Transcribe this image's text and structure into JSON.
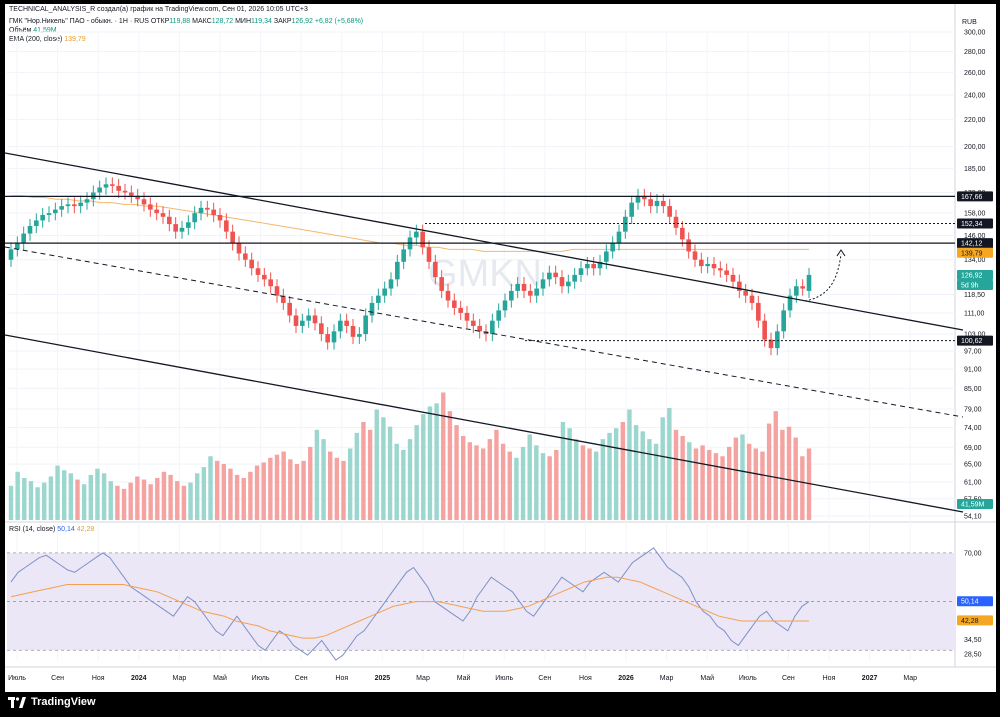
{
  "header": {
    "title": "TECHNICAL_ANALYSIS_R создал(а) график на TradingView.com, Сен 01, 2026 10:05 UTC+3"
  },
  "legend": {
    "symbol": "ГМК \"Нор.Никель\" ПАО - обыкн. · 1H · RUS",
    "open_label": "ОТКР",
    "open": "119,88",
    "high_label": "МАКС",
    "high": "128,72",
    "low_label": "МИН",
    "low": "119,34",
    "close_label": "ЗАКР",
    "close": "126,92",
    "change": "+6,82 (+5,68%)",
    "volume_label": "Объём",
    "volume": "41,59M",
    "ema_label": "EMA (200, close)",
    "ema": "139,79",
    "rsi_label": "RSI (14, close)",
    "rsi": "50,14",
    "rsi_ma": "42,28"
  },
  "watermark": "GMKN",
  "currency": "RUB",
  "colors": {
    "up": "#26a69a",
    "down": "#ef5350",
    "ema": "#f5b86b",
    "rsi": "#7e90c8",
    "rsi_ma": "#f5a04d",
    "rsi_band": "#ebe7f7",
    "price_badge": "#26a69a",
    "ema_badge": "#f5a623",
    "level_badge": "#131722"
  },
  "chart_data": {
    "type": "candlestick",
    "price_scale": "log",
    "price_ticks": [
      "300,00",
      "280,00",
      "260,00",
      "240,00",
      "220,00",
      "200,00",
      "185,00",
      "170,00",
      "158,00",
      "146,00",
      "134,00",
      "118,50",
      "111,00",
      "103,00",
      "97,00",
      "91,00",
      "85,00",
      "79,00",
      "74,00",
      "69,00",
      "65,00",
      "61,00",
      "57,50",
      "54,10"
    ],
    "x_ticks": [
      "Июль",
      "Сен",
      "Ноя",
      "2024",
      "Мар",
      "Май",
      "Июль",
      "Сен",
      "Ноя",
      "2025",
      "Мар",
      "Май",
      "Июль",
      "Сен",
      "Ноя",
      "2026",
      "Мар",
      "Май",
      "Июль",
      "Сен",
      "Ноя",
      "2027",
      "Мар"
    ],
    "candle_close": [
      139,
      142,
      147,
      151,
      154,
      157,
      158,
      160,
      162,
      163,
      162,
      164,
      166,
      170,
      173,
      175,
      174,
      171,
      170,
      168,
      166,
      163,
      160,
      158,
      156,
      152,
      148,
      150,
      153,
      158,
      161,
      160,
      157,
      154,
      148,
      142,
      137,
      134,
      130,
      127,
      125,
      122,
      118,
      115,
      110,
      106,
      108,
      110,
      107,
      103,
      100,
      104,
      108,
      106,
      102,
      103,
      110,
      115,
      118,
      121,
      125,
      133,
      139,
      145,
      148,
      140,
      133,
      126,
      120,
      116,
      113,
      111,
      108,
      106,
      104,
      103,
      108,
      112,
      116,
      120,
      123,
      120,
      118,
      121,
      125,
      128,
      126,
      122,
      124,
      127,
      130,
      132,
      130,
      133,
      138,
      142,
      148,
      156,
      164,
      168,
      166,
      162,
      165,
      162,
      156,
      150,
      144,
      138,
      134,
      131,
      132,
      130,
      129,
      127,
      124,
      120,
      118,
      115,
      108,
      101,
      98,
      104,
      112,
      118,
      122,
      121,
      127
    ],
    "candle_open": [
      134,
      139,
      142,
      147,
      151,
      154,
      157,
      158,
      160,
      162,
      163,
      162,
      164,
      166,
      170,
      173,
      175,
      174,
      171,
      170,
      168,
      166,
      163,
      160,
      158,
      156,
      152,
      148,
      150,
      153,
      158,
      161,
      160,
      157,
      154,
      148,
      142,
      137,
      134,
      130,
      127,
      125,
      122,
      118,
      115,
      110,
      106,
      108,
      110,
      107,
      103,
      100,
      104,
      108,
      106,
      102,
      103,
      110,
      115,
      118,
      121,
      125,
      133,
      139,
      145,
      148,
      140,
      133,
      126,
      120,
      116,
      113,
      111,
      108,
      106,
      104,
      103,
      108,
      112,
      116,
      120,
      123,
      120,
      118,
      121,
      125,
      128,
      126,
      122,
      124,
      127,
      130,
      132,
      130,
      133,
      138,
      142,
      148,
      156,
      164,
      168,
      166,
      162,
      165,
      162,
      156,
      150,
      144,
      138,
      134,
      131,
      132,
      130,
      129,
      127,
      124,
      120,
      118,
      115,
      108,
      101,
      98,
      104,
      112,
      118,
      122,
      120
    ],
    "ema_200": [
      168,
      168,
      167,
      167,
      166,
      166,
      165,
      165,
      164,
      164,
      163,
      163,
      162,
      162,
      161,
      160,
      159,
      158,
      157,
      156,
      155,
      154,
      153,
      152,
      151,
      150,
      149,
      148,
      147,
      146,
      145,
      144,
      143,
      142,
      142,
      141,
      141,
      140,
      140,
      139,
      139,
      139,
      138,
      138,
      138,
      138,
      138,
      138,
      138,
      138,
      139,
      139,
      139,
      139,
      139,
      139,
      139,
      139,
      139,
      139,
      139,
      139,
      139,
      139,
      139,
      139,
      139,
      139,
      139,
      139,
      139,
      139
    ],
    "volume_millions": [
      22,
      31,
      27,
      25,
      21,
      24,
      28,
      35,
      32,
      30,
      26,
      23,
      29,
      33,
      30,
      25,
      22,
      20,
      24,
      28,
      26,
      23,
      27,
      31,
      29,
      25,
      22,
      24,
      30,
      34,
      41,
      38,
      36,
      33,
      29,
      27,
      31,
      35,
      37,
      40,
      42,
      44,
      39,
      36,
      38,
      47,
      58,
      52,
      44,
      40,
      38,
      46,
      56,
      63,
      58,
      71,
      66,
      60,
      49,
      45,
      52,
      61,
      68,
      73,
      75,
      82,
      70,
      61,
      54,
      50,
      48,
      46,
      52,
      58,
      49,
      44,
      40,
      47,
      55,
      48,
      43,
      41,
      45,
      63,
      59,
      52,
      48,
      46,
      44,
      52,
      56,
      59,
      63,
      71,
      61,
      57,
      52,
      49,
      66,
      72,
      58,
      54,
      50,
      46,
      48,
      45,
      43,
      41,
      47,
      53,
      55,
      49,
      46,
      44,
      62,
      70,
      58,
      60,
      53,
      41,
      46
    ],
    "rsi": [
      58,
      62,
      64,
      66,
      68,
      69,
      67,
      65,
      63,
      62,
      64,
      66,
      68,
      70,
      68,
      64,
      60,
      56,
      54,
      52,
      50,
      48,
      46,
      44,
      48,
      52,
      50,
      46,
      42,
      38,
      36,
      40,
      44,
      40,
      36,
      32,
      30,
      34,
      38,
      36,
      32,
      30,
      28,
      31,
      34,
      30,
      26,
      28,
      32,
      36,
      38,
      42,
      46,
      50,
      54,
      58,
      62,
      64,
      60,
      56,
      50,
      48,
      46,
      44,
      42,
      46,
      52,
      56,
      60,
      58,
      56,
      54,
      50,
      46,
      44,
      48,
      52,
      56,
      60,
      58,
      56,
      54,
      58,
      60,
      62,
      60,
      58,
      62,
      66,
      68,
      70,
      72,
      68,
      64,
      62,
      60,
      56,
      50,
      46,
      44,
      40,
      38,
      34,
      32,
      36,
      40,
      44,
      46,
      42,
      40,
      38,
      44,
      48,
      50
    ],
    "rsi_ma": [
      52,
      53,
      54,
      55,
      56,
      57,
      57,
      57,
      57,
      57,
      57,
      56,
      55,
      54,
      52,
      50,
      48,
      46,
      45,
      44,
      42,
      41,
      40,
      38,
      37,
      36,
      35,
      35,
      36,
      38,
      40,
      42,
      44,
      46,
      48,
      49,
      50,
      50,
      50,
      49,
      48,
      47,
      46,
      46,
      46,
      47,
      48,
      50,
      52,
      54,
      56,
      58,
      59,
      60,
      60,
      59,
      58,
      56,
      54,
      52,
      50,
      48,
      46,
      44,
      43,
      42,
      42,
      42,
      42,
      42,
      42,
      42
    ],
    "rsi_ticks": [
      "70,00",
      "50,14",
      "42,28",
      "34,50",
      "28,50"
    ],
    "levels": [
      "167,66",
      "152,34",
      "142,12",
      "100,62"
    ],
    "badges": {
      "last_price": "126,92",
      "countdown": "5d 9h",
      "ema_value": "139,79",
      "volume_value": "41,59M",
      "rsi_value": "50,14",
      "rsi_ma_value": "42,28"
    }
  },
  "brand": {
    "name": "TradingView"
  }
}
